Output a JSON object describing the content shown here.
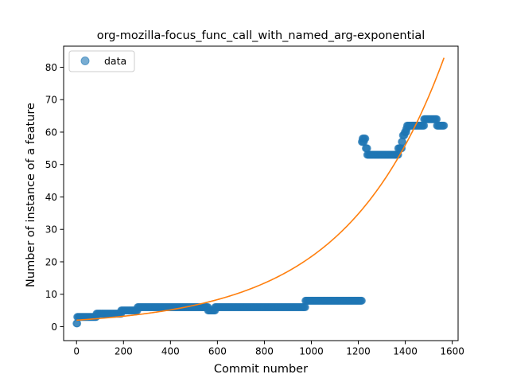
{
  "chart_data": {
    "type": "scatter",
    "title": "org-mozilla-focus_func_call_with_named_arg-exponential",
    "xlabel": "Commit number",
    "ylabel": "Number of instance of a feature",
    "xlim": [
      -55,
      1625
    ],
    "ylim": [
      -4.3,
      86.5
    ],
    "xticks": [
      0,
      200,
      400,
      600,
      800,
      1000,
      1200,
      1400,
      1600
    ],
    "yticks": [
      0,
      10,
      20,
      30,
      40,
      50,
      60,
      70,
      80
    ],
    "legend": {
      "placement": "top-left",
      "entries": [
        "data"
      ]
    },
    "colors": {
      "scatter": "#1f77b4",
      "fit": "#ff7f0e"
    },
    "series": [
      {
        "name": "data",
        "kind": "scatter",
        "segments": [
          {
            "x_start": 0,
            "x_end": 5,
            "y": 1
          },
          {
            "x_start": 3,
            "x_end": 85,
            "y": 3
          },
          {
            "x_start": 85,
            "x_end": 190,
            "y": 4
          },
          {
            "x_start": 190,
            "x_end": 260,
            "y": 5
          },
          {
            "x_start": 260,
            "x_end": 560,
            "y": 6
          },
          {
            "x_start": 560,
            "x_end": 590,
            "y": 5
          },
          {
            "x_start": 590,
            "x_end": 975,
            "y": 6
          },
          {
            "x_start": 975,
            "x_end": 1215,
            "y": 8
          },
          {
            "x_start": 1215,
            "x_end": 1225,
            "y": 57
          },
          {
            "x_start": 1218,
            "x_end": 1232,
            "y": 58
          },
          {
            "x_start": 1232,
            "x_end": 1238,
            "y": 55
          },
          {
            "x_start": 1238,
            "x_end": 1370,
            "y": 53
          },
          {
            "x_start": 1370,
            "x_end": 1385,
            "y": 55
          },
          {
            "x_start": 1385,
            "x_end": 1390,
            "y": 57
          },
          {
            "x_start": 1390,
            "x_end": 1398,
            "y": 59
          },
          {
            "x_start": 1398,
            "x_end": 1404,
            "y": 60
          },
          {
            "x_start": 1404,
            "x_end": 1408,
            "y": 61
          },
          {
            "x_start": 1408,
            "x_end": 1480,
            "y": 62
          },
          {
            "x_start": 1480,
            "x_end": 1535,
            "y": 64
          },
          {
            "x_start": 1535,
            "x_end": 1565,
            "y": 62
          }
        ]
      },
      {
        "name": "",
        "kind": "line",
        "model": "exponential",
        "a": 2.0,
        "b": 0.00238,
        "x_range": [
          0,
          1565
        ]
      }
    ]
  }
}
